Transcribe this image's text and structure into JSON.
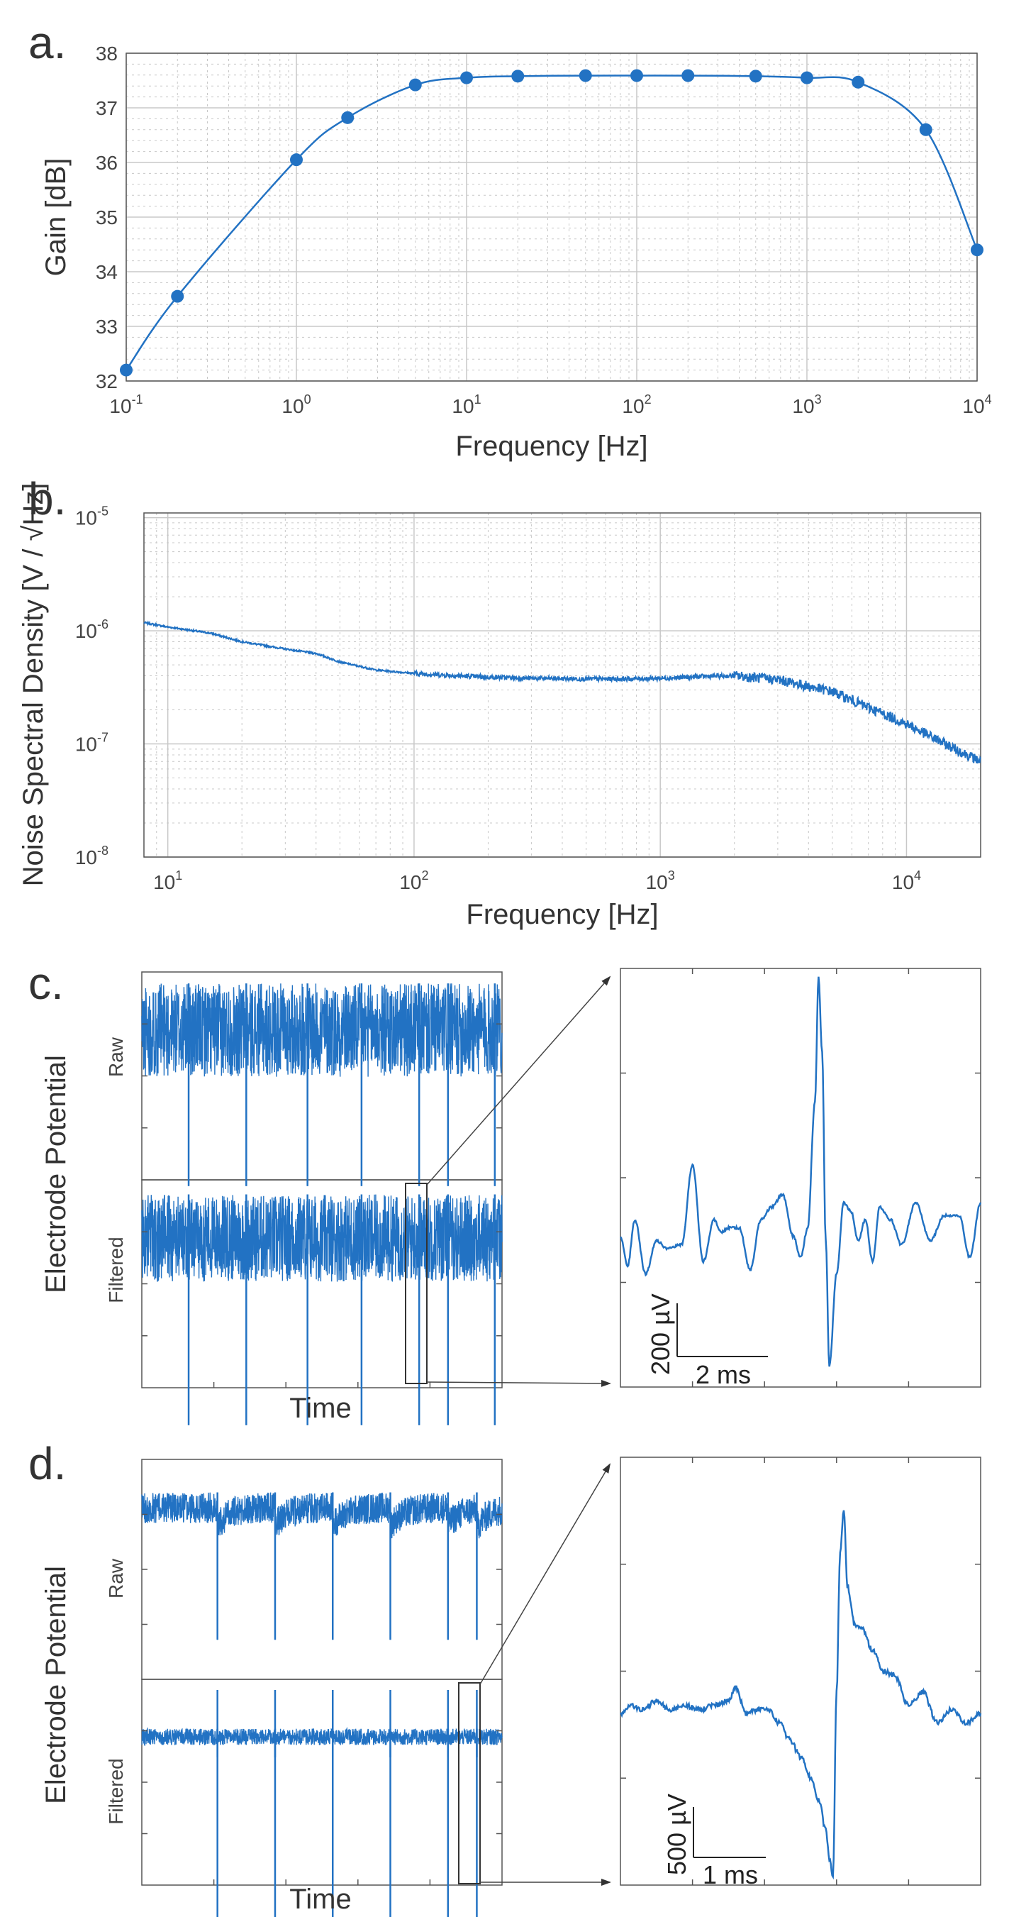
{
  "panels": {
    "a": {
      "letter": "a."
    },
    "b": {
      "letter": "b."
    },
    "c": {
      "letter": "c.",
      "ylabel": "Electrode Potential",
      "raw_label": "Raw",
      "filtered_label": "Filtered",
      "xlabel": "Time",
      "scalebar_v": "200 µV",
      "scalebar_t": "2 ms"
    },
    "d": {
      "letter": "d.",
      "ylabel": "Electrode Potential",
      "raw_label": "Raw",
      "filtered_label": "Filtered",
      "xlabel": "Time",
      "scalebar_v": "500 µV",
      "scalebar_t": "1 ms"
    }
  },
  "colors": {
    "series": "#2272c3",
    "grid": "#c8c8c8",
    "axis": "#555555"
  },
  "chart_data": [
    {
      "id": "a",
      "type": "line",
      "xscale": "log",
      "x": [
        0.1,
        0.2,
        1,
        2,
        5,
        10,
        20,
        50,
        100,
        200,
        500,
        1000,
        2000,
        5000,
        10000
      ],
      "series": [
        {
          "values": [
            32.2,
            33.55,
            36.05,
            36.82,
            37.42,
            37.55,
            37.58,
            37.59,
            37.59,
            37.59,
            37.58,
            37.55,
            37.47,
            36.6,
            34.4
          ]
        }
      ],
      "xlabel": "Frequency [Hz]",
      "ylabel": "Gain [dB]",
      "xlim": [
        0.1,
        10000
      ],
      "ylim": [
        32,
        38
      ],
      "yticks": [
        "32",
        "33",
        "34",
        "35",
        "36",
        "37",
        "38"
      ],
      "xticks": [
        {
          "base": "10",
          "exp": "-1"
        },
        {
          "base": "10",
          "exp": "0"
        },
        {
          "base": "10",
          "exp": "1"
        },
        {
          "base": "10",
          "exp": "2"
        },
        {
          "base": "10",
          "exp": "3"
        },
        {
          "base": "10",
          "exp": "4"
        }
      ],
      "grid": true
    },
    {
      "id": "b",
      "type": "line",
      "xscale": "log",
      "yscale": "log",
      "x": [
        8,
        10,
        15,
        20,
        30,
        40,
        50,
        70,
        100,
        150,
        200,
        300,
        500,
        700,
        1000,
        1500,
        2000,
        3000,
        5000,
        7000,
        10000,
        15000,
        20000
      ],
      "series": [
        {
          "values": [
            1.18e-06,
            1.08e-06,
            9.5e-07,
            8e-07,
            6.9e-07,
            6.3e-07,
            5.3e-07,
            4.5e-07,
            4.2e-07,
            4e-07,
            3.9e-07,
            3.8e-07,
            3.75e-07,
            3.75e-07,
            3.8e-07,
            3.95e-07,
            4e-07,
            3.7e-07,
            2.9e-07,
            2.1e-07,
            1.5e-07,
            9.5e-08,
            7e-08
          ]
        }
      ],
      "xlabel": "Frequency [Hz]",
      "ylabel": "Noise Spectral Density [V / √Hz]",
      "xlim": [
        8,
        20000
      ],
      "ylim": [
        1e-08,
        1.1e-05
      ],
      "yticks": [
        {
          "base": "10",
          "exp": "-8"
        },
        {
          "base": "10",
          "exp": "-7"
        },
        {
          "base": "10",
          "exp": "-6"
        },
        {
          "base": "10",
          "exp": "-5"
        }
      ],
      "xticks": [
        {
          "base": "10",
          "exp": "1"
        },
        {
          "base": "10",
          "exp": "2"
        },
        {
          "base": "10",
          "exp": "3"
        },
        {
          "base": "10",
          "exp": "4"
        }
      ],
      "grid": true
    },
    {
      "id": "c-raw",
      "type": "line",
      "spike_times": [
        0.13,
        0.29,
        0.46,
        0.61,
        0.77,
        0.85,
        0.98
      ],
      "spike_depth": 0.75,
      "grid": false
    },
    {
      "id": "c-filtered",
      "type": "line",
      "spike_times": [
        0.13,
        0.29,
        0.46,
        0.61,
        0.77,
        0.85,
        0.98
      ],
      "spike_depth": 0.9,
      "grid": false
    },
    {
      "id": "c-zoom",
      "type": "line",
      "x": [
        0,
        0.02,
        0.04,
        0.07,
        0.1,
        0.13,
        0.17,
        0.2,
        0.23,
        0.26,
        0.28,
        0.3,
        0.33,
        0.36,
        0.39,
        0.42,
        0.45,
        0.48,
        0.5,
        0.52,
        0.54,
        0.55,
        0.56,
        0.57,
        0.58,
        0.6,
        0.62,
        0.64,
        0.66,
        0.68,
        0.7,
        0.72,
        0.75,
        0.78,
        0.82,
        0.86,
        0.9,
        0.94,
        0.97,
        1.0
      ],
      "series": [
        {
          "values": [
            0.36,
            0.29,
            0.4,
            0.27,
            0.35,
            0.33,
            0.34,
            0.53,
            0.3,
            0.4,
            0.37,
            0.38,
            0.38,
            0.28,
            0.4,
            0.43,
            0.46,
            0.36,
            0.31,
            0.38,
            0.68,
            0.98,
            0.8,
            0.35,
            0.05,
            0.27,
            0.44,
            0.42,
            0.35,
            0.4,
            0.3,
            0.43,
            0.4,
            0.34,
            0.44,
            0.35,
            0.41,
            0.41,
            0.31,
            0.44
          ]
        }
      ],
      "scalebar": {
        "voltage": "200 µV",
        "time": "2 ms"
      },
      "grid": false
    },
    {
      "id": "d-raw",
      "type": "line",
      "spike_times": [
        0.21,
        0.37,
        0.53,
        0.69,
        0.85,
        0.93
      ],
      "spike_depth": 0.6,
      "grid": false
    },
    {
      "id": "d-filtered",
      "type": "line",
      "spike_times": [
        0.21,
        0.37,
        0.53,
        0.69,
        0.85,
        0.93
      ],
      "spike_depth": 0.9,
      "grid": false
    },
    {
      "id": "d-zoom",
      "type": "line",
      "x": [
        0,
        0.03,
        0.06,
        0.1,
        0.14,
        0.18,
        0.22,
        0.26,
        0.3,
        0.32,
        0.35,
        0.38,
        0.41,
        0.44,
        0.47,
        0.5,
        0.53,
        0.55,
        0.57,
        0.58,
        0.59,
        0.6,
        0.61,
        0.62,
        0.63,
        0.65,
        0.67,
        0.7,
        0.73,
        0.76,
        0.8,
        0.84,
        0.88,
        0.92,
        0.96,
        1.0
      ],
      "series": [
        {
          "values": [
            0.4,
            0.42,
            0.41,
            0.43,
            0.41,
            0.42,
            0.41,
            0.42,
            0.43,
            0.46,
            0.4,
            0.41,
            0.41,
            0.38,
            0.34,
            0.3,
            0.25,
            0.2,
            0.13,
            0.06,
            0.02,
            0.45,
            0.78,
            0.88,
            0.7,
            0.61,
            0.6,
            0.55,
            0.5,
            0.49,
            0.42,
            0.45,
            0.38,
            0.41,
            0.38,
            0.4
          ]
        }
      ],
      "scalebar": {
        "voltage": "500 µV",
        "time": "1 ms"
      },
      "grid": false
    }
  ]
}
